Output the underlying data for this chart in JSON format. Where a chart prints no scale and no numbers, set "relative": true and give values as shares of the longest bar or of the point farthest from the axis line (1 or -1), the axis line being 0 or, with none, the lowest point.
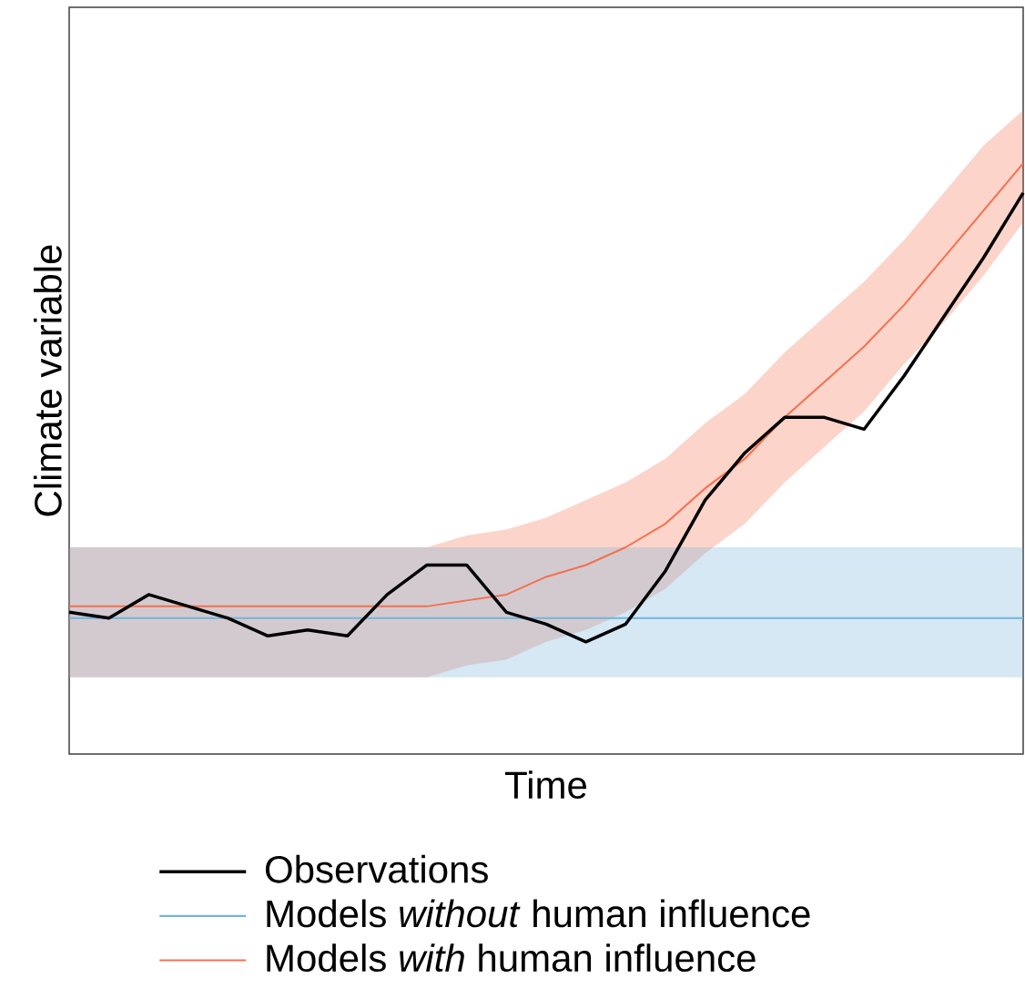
{
  "chart_data": {
    "type": "line",
    "relative": true,
    "xlabel": "Time",
    "ylabel": "Climate variable",
    "legend": "bottom",
    "categories": [
      null,
      null,
      null,
      null,
      null,
      null,
      null,
      null,
      null,
      null,
      null,
      null,
      null,
      null,
      null,
      null,
      null,
      null,
      null,
      null,
      null,
      null,
      null,
      null,
      null
    ],
    "series": [
      {
        "name": "Observations",
        "color": "#000000",
        "values": [
          0.24,
          0.23,
          0.27,
          0.25,
          0.23,
          0.2,
          0.21,
          0.2,
          0.27,
          0.32,
          0.32,
          0.24,
          0.22,
          0.19,
          0.22,
          0.31,
          0.43,
          0.51,
          0.57,
          0.57,
          0.55,
          0.64,
          0.74,
          0.84,
          0.95
        ]
      },
      {
        "name": "Models *without* human influence",
        "color": "#74b4dc",
        "values": [
          0.23,
          0.23,
          0.23,
          0.23,
          0.23,
          0.23,
          0.23,
          0.23,
          0.23,
          0.23,
          0.23,
          0.23,
          0.23,
          0.23,
          0.23,
          0.23,
          0.23,
          0.23,
          0.23,
          0.23,
          0.23,
          0.23,
          0.23,
          0.23,
          0.23
        ],
        "lower": [
          0.13,
          0.13,
          0.13,
          0.13,
          0.13,
          0.13,
          0.13,
          0.13,
          0.13,
          0.13,
          0.13,
          0.13,
          0.13,
          0.13,
          0.13,
          0.13,
          0.13,
          0.13,
          0.13,
          0.13,
          0.13,
          0.13,
          0.13,
          0.13,
          0.13
        ],
        "upper": [
          0.35,
          0.35,
          0.35,
          0.35,
          0.35,
          0.35,
          0.35,
          0.35,
          0.35,
          0.35,
          0.35,
          0.35,
          0.35,
          0.35,
          0.35,
          0.35,
          0.35,
          0.35,
          0.35,
          0.35,
          0.35,
          0.35,
          0.35,
          0.35,
          0.35
        ]
      },
      {
        "name": "Models *with* human influence",
        "color": "#f4704e",
        "values": [
          0.25,
          0.25,
          0.25,
          0.25,
          0.25,
          0.25,
          0.25,
          0.25,
          0.25,
          0.25,
          0.26,
          0.27,
          0.3,
          0.32,
          0.35,
          0.39,
          0.45,
          0.5,
          0.57,
          0.63,
          0.69,
          0.76,
          0.84,
          0.92,
          1.0
        ],
        "lower": [
          0.13,
          0.13,
          0.13,
          0.13,
          0.13,
          0.13,
          0.13,
          0.13,
          0.13,
          0.13,
          0.15,
          0.16,
          0.19,
          0.21,
          0.24,
          0.28,
          0.34,
          0.39,
          0.46,
          0.52,
          0.58,
          0.66,
          0.73,
          0.81,
          0.9
        ],
        "upper": [
          0.35,
          0.35,
          0.35,
          0.35,
          0.35,
          0.35,
          0.35,
          0.35,
          0.35,
          0.35,
          0.37,
          0.38,
          0.4,
          0.43,
          0.46,
          0.5,
          0.56,
          0.61,
          0.68,
          0.74,
          0.8,
          0.87,
          0.95,
          1.03,
          1.09
        ]
      }
    ]
  }
}
